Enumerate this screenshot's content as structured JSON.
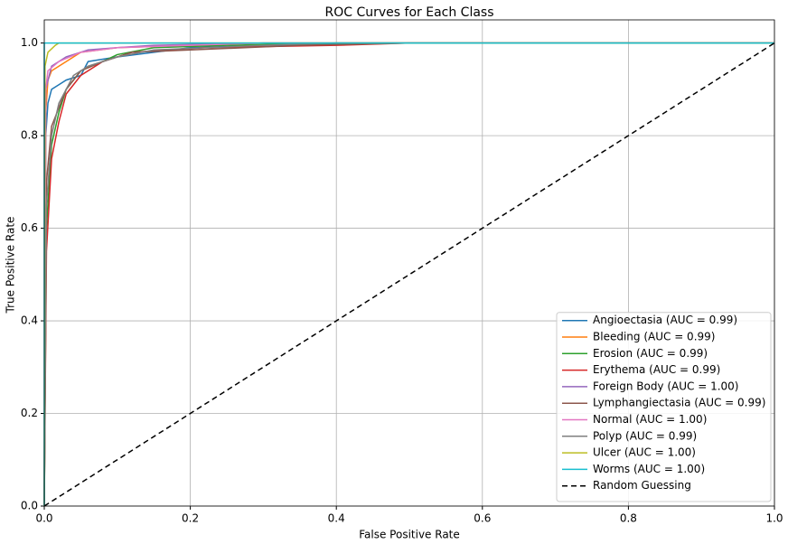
{
  "chart_data": {
    "type": "line",
    "title": "ROC Curves for Each Class",
    "xlabel": "False Positive Rate",
    "ylabel": "True Positive Rate",
    "xlim": [
      0,
      1
    ],
    "ylim": [
      0,
      1.05
    ],
    "xticks": [
      {
        "value": 0,
        "label": "0.0"
      },
      {
        "value": 0.2,
        "label": "0.2"
      },
      {
        "value": 0.4,
        "label": "0.4"
      },
      {
        "value": 0.6,
        "label": "0.6"
      },
      {
        "value": 0.8,
        "label": "0.8"
      },
      {
        "value": 1,
        "label": "1.0"
      }
    ],
    "yticks": [
      {
        "value": 0,
        "label": "0.0"
      },
      {
        "value": 0.2,
        "label": "0.2"
      },
      {
        "value": 0.4,
        "label": "0.4"
      },
      {
        "value": 0.6,
        "label": "0.6"
      },
      {
        "value": 0.8,
        "label": "0.8"
      },
      {
        "value": 1,
        "label": "1.0"
      }
    ],
    "grid": true,
    "legend": "lower right",
    "series": [
      {
        "name": "Angioectasia (AUC = 0.99)",
        "color": "#1f77b4",
        "x": [
          0,
          0.002,
          0.005,
          0.01,
          0.02,
          0.03,
          0.05,
          0.06,
          0.1,
          0.15,
          0.2,
          0.3,
          0.45,
          1
        ],
        "values": [
          0,
          0.8,
          0.87,
          0.9,
          0.91,
          0.92,
          0.93,
          0.96,
          0.97,
          0.98,
          0.99,
          0.995,
          1,
          1
        ]
      },
      {
        "name": "Bleeding (AUC = 0.99)",
        "color": "#ff7f0e",
        "x": [
          0,
          0.002,
          0.005,
          0.01,
          0.03,
          0.05,
          0.1,
          0.2,
          0.3,
          1
        ],
        "values": [
          0,
          0.85,
          0.92,
          0.94,
          0.96,
          0.98,
          0.99,
          0.995,
          1,
          1
        ]
      },
      {
        "name": "Erosion (AUC = 0.99)",
        "color": "#2ca02c",
        "x": [
          0,
          0.003,
          0.01,
          0.02,
          0.03,
          0.05,
          0.08,
          0.1,
          0.15,
          0.25,
          0.4,
          1
        ],
        "values": [
          0,
          0.6,
          0.78,
          0.85,
          0.9,
          0.94,
          0.96,
          0.975,
          0.99,
          0.995,
          1,
          1
        ]
      },
      {
        "name": "Erythema (AUC = 0.99)",
        "color": "#d62728",
        "x": [
          0,
          0.003,
          0.01,
          0.02,
          0.03,
          0.05,
          0.08,
          0.12,
          0.22,
          0.4,
          0.5,
          1
        ],
        "values": [
          0,
          0.55,
          0.75,
          0.83,
          0.89,
          0.93,
          0.96,
          0.98,
          0.99,
          0.995,
          1,
          1
        ]
      },
      {
        "name": "Foreign Body (AUC = 1.00)",
        "color": "#9467bd",
        "x": [
          0,
          0.002,
          0.01,
          0.03,
          0.06,
          0.1,
          0.15,
          0.3,
          1
        ],
        "values": [
          0,
          0.9,
          0.95,
          0.97,
          0.985,
          0.99,
          0.995,
          1,
          1
        ]
      },
      {
        "name": "Lymphangiectasia (AUC = 0.99)",
        "color": "#8c564b",
        "x": [
          0,
          0.003,
          0.01,
          0.03,
          0.05,
          0.08,
          0.12,
          0.2,
          0.35,
          0.5,
          1
        ],
        "values": [
          0,
          0.7,
          0.82,
          0.9,
          0.94,
          0.96,
          0.98,
          0.985,
          0.995,
          1,
          1
        ]
      },
      {
        "name": "Normal (AUC = 1.00)",
        "color": "#e377c2",
        "x": [
          0,
          0.002,
          0.005,
          0.02,
          0.05,
          0.1,
          0.2,
          0.3,
          1
        ],
        "values": [
          0,
          0.9,
          0.94,
          0.96,
          0.98,
          0.99,
          0.995,
          1,
          1
        ]
      },
      {
        "name": "Polyp (AUC = 0.99)",
        "color": "#7f7f7f",
        "x": [
          0,
          0.003,
          0.01,
          0.02,
          0.04,
          0.06,
          0.1,
          0.15,
          0.3,
          0.4,
          1
        ],
        "values": [
          0,
          0.65,
          0.8,
          0.87,
          0.93,
          0.95,
          0.97,
          0.985,
          0.995,
          1,
          1
        ]
      },
      {
        "name": "Ulcer (AUC = 1.00)",
        "color": "#bcbd22",
        "x": [
          0,
          0.001,
          0.005,
          0.015,
          0.02,
          1
        ],
        "values": [
          0,
          0.95,
          0.98,
          0.995,
          1,
          1
        ]
      },
      {
        "name": "Worms (AUC = 1.00)",
        "color": "#17becf",
        "x": [
          0,
          0,
          1
        ],
        "values": [
          0,
          1,
          1
        ]
      },
      {
        "name": "Random Guessing",
        "color": "#000000",
        "dashed": true,
        "x": [
          0,
          1
        ],
        "values": [
          0,
          1
        ]
      }
    ]
  }
}
